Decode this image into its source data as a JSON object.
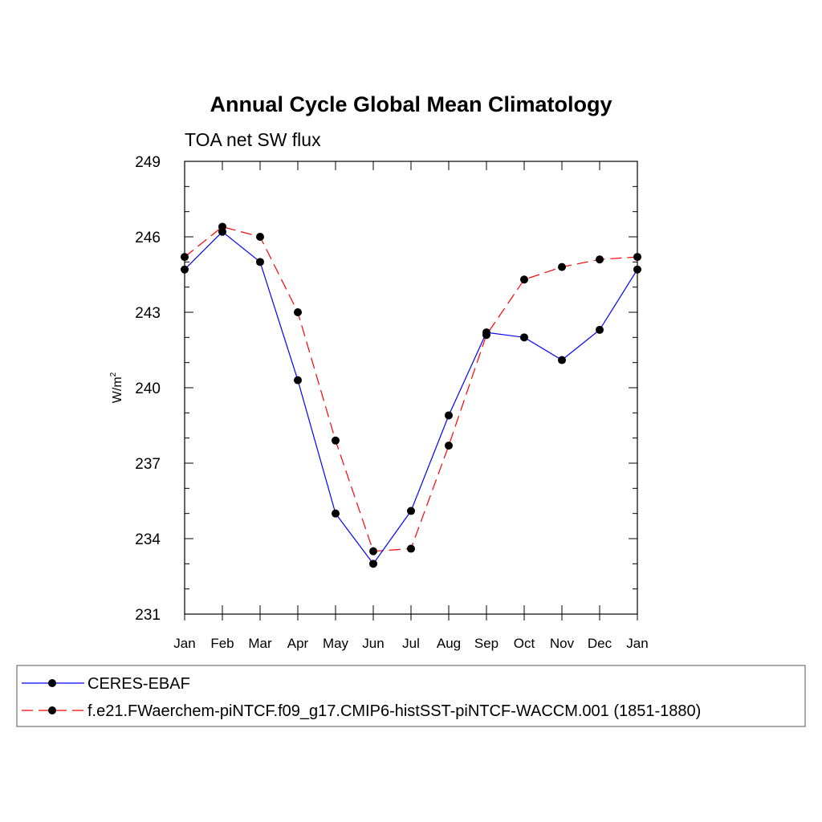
{
  "chart_data": {
    "type": "line",
    "title": "Annual Cycle Global Mean Climatology",
    "subtitle": "TOA net SW flux",
    "ylabel": "W/m",
    "ylabel_sup": "2",
    "categories": [
      "Jan",
      "Feb",
      "Mar",
      "Apr",
      "May",
      "Jun",
      "Jul",
      "Aug",
      "Sep",
      "Oct",
      "Nov",
      "Dec",
      "Jan"
    ],
    "ylim": [
      231,
      249
    ],
    "yticks": [
      "231",
      "234",
      "237",
      "240",
      "243",
      "246",
      "249"
    ],
    "grid": false,
    "legend_position": "bottom",
    "series": [
      {
        "name": "CERES-EBAF",
        "color": "#0000ff",
        "dash": "solid",
        "marker": "filled-circle",
        "values": [
          244.7,
          246.2,
          245.0,
          240.3,
          235.0,
          233.0,
          235.1,
          238.9,
          242.2,
          242.0,
          241.1,
          242.3,
          244.7
        ]
      },
      {
        "name": "f.e21.FWaerchem-piNTCF.f09_g17.CMIP6-histSST-piNTCF-WACCM.001 (1851-1880)",
        "color": "#ff0000",
        "dash": "dashed",
        "marker": "filled-circle",
        "values": [
          245.2,
          246.4,
          246.0,
          243.0,
          237.9,
          233.5,
          233.6,
          237.7,
          242.1,
          244.3,
          244.8,
          245.1,
          245.2
        ]
      }
    ]
  }
}
